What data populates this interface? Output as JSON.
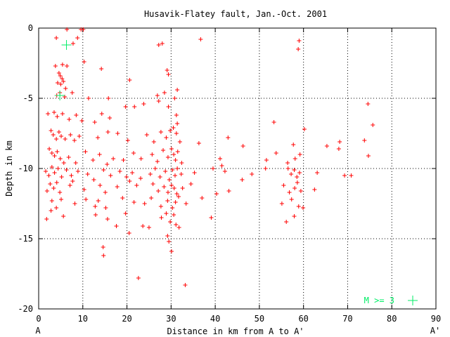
{
  "chart_data": {
    "type": "scatter",
    "title": "Husavik-Flatey fault, Jan.-Oct. 2001",
    "xlabel": "Distance in km from A to A'",
    "ylabel": "Depth in km",
    "xlim": [
      0,
      90
    ],
    "ylim": [
      -20,
      0
    ],
    "x_ticks": [
      "0",
      "10",
      "20",
      "30",
      "40",
      "50",
      "60",
      "70",
      "80",
      "90"
    ],
    "y_ticks": [
      "0",
      "-5",
      "-10",
      "-15",
      "-20"
    ],
    "grid": true,
    "end_labels": {
      "left": "A",
      "right": "A'"
    },
    "legend": {
      "label": "M >= 3",
      "placement": "bottom-right"
    },
    "colors": {
      "events": "#ff0000",
      "large_events": "#00ee66",
      "axes": "#000000",
      "grid": "#000000"
    },
    "series": [
      {
        "marker": "plus-small",
        "color": "#ff0000",
        "points": [
          [
            6.4,
            -0.1
          ],
          [
            9.6,
            -0.1
          ],
          [
            10.1,
            -0.1
          ],
          [
            4.0,
            -0.7
          ],
          [
            8.8,
            -0.7
          ],
          [
            7.8,
            -1.1
          ],
          [
            27.2,
            -1.2
          ],
          [
            28.0,
            -1.1
          ],
          [
            36.7,
            -0.8
          ],
          [
            59.0,
            -0.9
          ],
          [
            58.8,
            -1.5
          ],
          [
            3.8,
            -2.7
          ],
          [
            5.4,
            -2.6
          ],
          [
            6.4,
            -2.7
          ],
          [
            10.3,
            -2.4
          ],
          [
            14.2,
            -2.9
          ],
          [
            4.6,
            -3.2
          ],
          [
            4.9,
            -3.4
          ],
          [
            5.3,
            -3.6
          ],
          [
            4.3,
            -3.9
          ],
          [
            5.0,
            -4.0
          ],
          [
            5.6,
            -3.8
          ],
          [
            6.1,
            -4.3
          ],
          [
            4.8,
            -4.6
          ],
          [
            4.1,
            -4.8
          ],
          [
            5.9,
            -4.9
          ],
          [
            7.6,
            -4.6
          ],
          [
            29.1,
            -3.0
          ],
          [
            20.6,
            -3.7
          ],
          [
            29.4,
            -3.3
          ],
          [
            31.4,
            -4.4
          ],
          [
            26.9,
            -4.8
          ],
          [
            28.5,
            -4.6
          ],
          [
            15.8,
            -5.0
          ],
          [
            11.3,
            -5.0
          ],
          [
            2.1,
            -6.1
          ],
          [
            3.5,
            -6.0
          ],
          [
            4.2,
            -6.3
          ],
          [
            5.4,
            -6.1
          ],
          [
            6.9,
            -6.5
          ],
          [
            8.5,
            -6.2
          ],
          [
            9.8,
            -6.6
          ],
          [
            12.7,
            -6.7
          ],
          [
            14.3,
            -6.1
          ],
          [
            16.1,
            -6.4
          ],
          [
            19.7,
            -5.6
          ],
          [
            21.7,
            -5.6
          ],
          [
            23.8,
            -5.4
          ],
          [
            27.2,
            -5.2
          ],
          [
            29.4,
            -5.6
          ],
          [
            30.8,
            -5.0
          ],
          [
            31.2,
            -6.2
          ],
          [
            31.4,
            -6.8
          ],
          [
            53.3,
            -6.7
          ],
          [
            60.2,
            -7.2
          ],
          [
            74.6,
            -5.4
          ],
          [
            75.7,
            -6.9
          ],
          [
            2.8,
            -7.3
          ],
          [
            3.3,
            -7.6
          ],
          [
            4.0,
            -7.9
          ],
          [
            4.6,
            -7.4
          ],
          [
            5.1,
            -7.7
          ],
          [
            6.0,
            -7.9
          ],
          [
            7.2,
            -7.6
          ],
          [
            8.1,
            -8.0
          ],
          [
            9.2,
            -7.7
          ],
          [
            13.4,
            -7.8
          ],
          [
            15.7,
            -7.4
          ],
          [
            17.9,
            -7.5
          ],
          [
            20.2,
            -8.0
          ],
          [
            24.5,
            -7.6
          ],
          [
            26.1,
            -8.1
          ],
          [
            27.7,
            -7.4
          ],
          [
            28.9,
            -7.8
          ],
          [
            29.8,
            -7.3
          ],
          [
            30.5,
            -7.1
          ],
          [
            31.2,
            -7.5
          ],
          [
            32.0,
            -8.1
          ],
          [
            36.3,
            -8.2
          ],
          [
            42.9,
            -7.8
          ],
          [
            57.7,
            -8.3
          ],
          [
            65.3,
            -8.4
          ],
          [
            68.2,
            -8.1
          ],
          [
            73.8,
            -8.0
          ],
          [
            2.4,
            -8.6
          ],
          [
            3.0,
            -8.9
          ],
          [
            3.6,
            -9.1
          ],
          [
            4.2,
            -8.8
          ],
          [
            4.9,
            -9.3
          ],
          [
            5.7,
            -9.6
          ],
          [
            6.8,
            -9.2
          ],
          [
            8.4,
            -9.6
          ],
          [
            10.6,
            -8.8
          ],
          [
            12.3,
            -9.4
          ],
          [
            13.8,
            -9.0
          ],
          [
            15.5,
            -9.7
          ],
          [
            16.9,
            -9.3
          ],
          [
            19.2,
            -9.4
          ],
          [
            21.5,
            -8.9
          ],
          [
            23.2,
            -9.3
          ],
          [
            25.7,
            -9.0
          ],
          [
            26.9,
            -9.5
          ],
          [
            28.2,
            -8.7
          ],
          [
            29.3,
            -9.2
          ],
          [
            30.1,
            -8.6
          ],
          [
            30.6,
            -9.0
          ],
          [
            31.0,
            -9.4
          ],
          [
            31.5,
            -8.8
          ],
          [
            32.4,
            -9.6
          ],
          [
            41.1,
            -9.3
          ],
          [
            46.3,
            -8.4
          ],
          [
            51.6,
            -9.4
          ],
          [
            53.8,
            -8.9
          ],
          [
            56.4,
            -9.6
          ],
          [
            58.1,
            -9.3
          ],
          [
            59.2,
            -9.0
          ],
          [
            68.0,
            -8.6
          ],
          [
            74.7,
            -9.1
          ],
          [
            1.6,
            -10.2
          ],
          [
            2.3,
            -10.5
          ],
          [
            3.0,
            -9.9
          ],
          [
            3.6,
            -10.3
          ],
          [
            4.4,
            -10.0
          ],
          [
            5.2,
            -10.6
          ],
          [
            6.3,
            -10.1
          ],
          [
            7.4,
            -10.5
          ],
          [
            8.9,
            -10.2
          ],
          [
            11.1,
            -10.4
          ],
          [
            12.5,
            -10.8
          ],
          [
            14.7,
            -10.1
          ],
          [
            16.3,
            -10.5
          ],
          [
            18.4,
            -10.2
          ],
          [
            19.9,
            -10.6
          ],
          [
            21.2,
            -10.3
          ],
          [
            23.1,
            -10.7
          ],
          [
            25.3,
            -10.4
          ],
          [
            26.4,
            -10.0
          ],
          [
            27.5,
            -10.6
          ],
          [
            28.7,
            -10.2
          ],
          [
            29.6,
            -10.8
          ],
          [
            30.3,
            -10.1
          ],
          [
            30.9,
            -10.5
          ],
          [
            31.4,
            -10.0
          ],
          [
            32.3,
            -10.4
          ],
          [
            35.3,
            -10.3
          ],
          [
            39.5,
            -10.0
          ],
          [
            41.5,
            -9.8
          ],
          [
            42.2,
            -10.2
          ],
          [
            48.3,
            -10.4
          ],
          [
            51.4,
            -10.0
          ],
          [
            56.5,
            -10.0
          ],
          [
            57.2,
            -10.4
          ],
          [
            57.9,
            -10.1
          ],
          [
            58.5,
            -10.6
          ],
          [
            59.1,
            -10.3
          ],
          [
            63.1,
            -10.3
          ],
          [
            69.3,
            -10.5
          ],
          [
            70.8,
            -10.5
          ],
          [
            1.9,
            -11.6
          ],
          [
            2.6,
            -11.1
          ],
          [
            3.4,
            -11.4
          ],
          [
            4.1,
            -11.0
          ],
          [
            4.8,
            -11.7
          ],
          [
            7.1,
            -11.2
          ],
          [
            7.7,
            -10.9
          ],
          [
            10.3,
            -11.5
          ],
          [
            13.9,
            -11.2
          ],
          [
            15.1,
            -11.7
          ],
          [
            17.8,
            -11.3
          ],
          [
            20.6,
            -10.9
          ],
          [
            22.2,
            -11.2
          ],
          [
            25.9,
            -11.1
          ],
          [
            27.1,
            -11.6
          ],
          [
            28.4,
            -11.3
          ],
          [
            29.3,
            -11.7
          ],
          [
            30.1,
            -11.2
          ],
          [
            30.7,
            -11.4
          ],
          [
            31.3,
            -11.8
          ],
          [
            32.6,
            -11.4
          ],
          [
            34.5,
            -11.1
          ],
          [
            40.3,
            -11.8
          ],
          [
            43.1,
            -11.6
          ],
          [
            46.1,
            -10.8
          ],
          [
            55.5,
            -11.2
          ],
          [
            56.8,
            -11.7
          ],
          [
            58.0,
            -11.4
          ],
          [
            58.6,
            -11.0
          ],
          [
            59.4,
            -11.6
          ],
          [
            62.5,
            -11.5
          ],
          [
            3.0,
            -12.3
          ],
          [
            4.0,
            -12.8
          ],
          [
            5.1,
            -12.2
          ],
          [
            8.2,
            -12.5
          ],
          [
            10.7,
            -12.2
          ],
          [
            12.8,
            -12.7
          ],
          [
            13.5,
            -12.3
          ],
          [
            15.2,
            -12.8
          ],
          [
            19.0,
            -12.1
          ],
          [
            21.6,
            -12.4
          ],
          [
            24.0,
            -12.5
          ],
          [
            25.5,
            -12.1
          ],
          [
            27.7,
            -12.7
          ],
          [
            29.2,
            -12.3
          ],
          [
            30.3,
            -12.8
          ],
          [
            31.0,
            -12.4
          ],
          [
            31.7,
            -12.0
          ],
          [
            33.4,
            -12.5
          ],
          [
            37.0,
            -12.1
          ],
          [
            55.1,
            -12.5
          ],
          [
            57.3,
            -12.2
          ],
          [
            58.9,
            -12.7
          ],
          [
            59.9,
            -12.8
          ],
          [
            1.8,
            -13.6
          ],
          [
            2.8,
            -13.0
          ],
          [
            5.6,
            -13.4
          ],
          [
            12.9,
            -13.3
          ],
          [
            15.6,
            -13.6
          ],
          [
            17.6,
            -14.1
          ],
          [
            19.7,
            -13.2
          ],
          [
            23.6,
            -14.1
          ],
          [
            25.0,
            -14.2
          ],
          [
            27.8,
            -13.5
          ],
          [
            28.9,
            -13.2
          ],
          [
            29.8,
            -13.8
          ],
          [
            30.6,
            -13.3
          ],
          [
            31.1,
            -14.0
          ],
          [
            31.8,
            -14.2
          ],
          [
            39.1,
            -13.5
          ],
          [
            56.1,
            -13.8
          ],
          [
            57.9,
            -13.4
          ],
          [
            20.5,
            -14.6
          ],
          [
            29.2,
            -14.8
          ],
          [
            29.5,
            -15.2
          ],
          [
            30.1,
            -15.9
          ],
          [
            14.6,
            -15.6
          ],
          [
            14.7,
            -16.2
          ],
          [
            22.6,
            -17.8
          ],
          [
            33.2,
            -18.3
          ]
        ]
      },
      {
        "name": "M >= 3",
        "marker": "plus-large",
        "color": "#00ee66",
        "points": [
          [
            6.3,
            -1.2
          ],
          [
            4.8,
            -4.8
          ]
        ]
      }
    ]
  }
}
